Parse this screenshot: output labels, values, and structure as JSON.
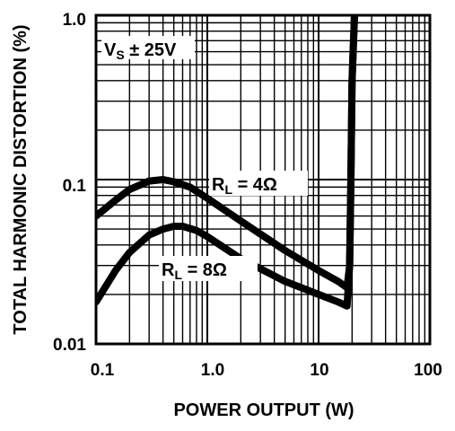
{
  "chart_data": {
    "type": "line",
    "title": "",
    "xlabel": "POWER OUTPUT (W)",
    "ylabel": "TOTAL HARMONIC DISTORTION (%)",
    "x_scale": "log",
    "y_scale": "log",
    "xlim": [
      0.1,
      100
    ],
    "ylim": [
      0.01,
      1.0
    ],
    "grid": true,
    "x_ticks": [
      "0.1",
      "1.0",
      "10",
      "100"
    ],
    "y_ticks": [
      "0.01",
      "0.1",
      "1.0"
    ],
    "annotation": {
      "main": "V",
      "sub": "S",
      "tail": " ± 25V"
    },
    "series": [
      {
        "label_main": "R",
        "label_sub": "L",
        "label_tail": " = 4Ω",
        "x": [
          0.1,
          0.15,
          0.2,
          0.3,
          0.4,
          0.5,
          0.7,
          1.0,
          2.0,
          5.0,
          10.0,
          15.0,
          18.0,
          19.0,
          19.5,
          20.0,
          21.0,
          22.0
        ],
        "y": [
          0.06,
          0.075,
          0.087,
          0.098,
          0.1,
          0.097,
          0.09,
          0.077,
          0.056,
          0.037,
          0.028,
          0.024,
          0.022,
          0.03,
          0.1,
          0.4,
          1.0,
          1.6
        ]
      },
      {
        "label_main": "R",
        "label_sub": "L",
        "label_tail": " = 8Ω",
        "x": [
          0.1,
          0.15,
          0.2,
          0.3,
          0.4,
          0.5,
          0.6,
          0.8,
          1.0,
          2.0,
          5.0,
          10.0,
          15.0,
          18.0,
          19.0,
          19.5,
          20.0,
          21.0,
          22.0
        ],
        "y": [
          0.018,
          0.028,
          0.036,
          0.046,
          0.05,
          0.052,
          0.052,
          0.049,
          0.045,
          0.033,
          0.024,
          0.02,
          0.018,
          0.017,
          0.03,
          0.1,
          0.4,
          1.0,
          1.6
        ]
      }
    ]
  }
}
